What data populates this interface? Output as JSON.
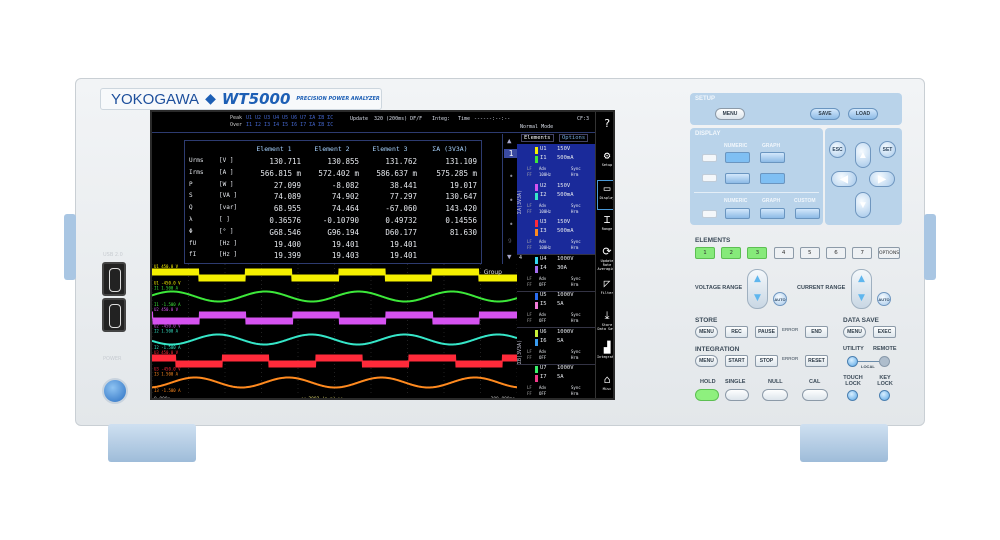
{
  "brand": {
    "maker": "YOKOGAWA",
    "model": "WT5000",
    "subtitle": "PRECISION POWER ANALYZER"
  },
  "front": {
    "usb_label": "USB 2.0",
    "power_label": "POWER"
  },
  "screen": {
    "header": {
      "peak_label": "Peak",
      "peak_channels": "U1 U2 U3 U4 U5 U6 U7 ΣA ΣB ΣC",
      "over_label": "Over",
      "over_channels": "I1 I2 I3 I4 I5 I6 I7 ΣA ΣB ΣC",
      "update_label": "Update",
      "update_value": "320 (200ms) DF/F",
      "integ_label": "Integ:",
      "time_label": "Time",
      "time_value": "------:--:--",
      "mode": "Normal Mode",
      "cf": "CF:3"
    },
    "table": {
      "columns": [
        "Element 1",
        "Element 2",
        "Element 3",
        "ΣA (3V3A)"
      ],
      "rows": [
        {
          "name": "Urms",
          "unit": "[V  ]",
          "values": [
            "130.711",
            "130.855",
            "131.762",
            "131.109"
          ]
        },
        {
          "name": "Irms",
          "unit": "[A  ]",
          "values": [
            "566.815 m",
            "572.402 m",
            "586.637 m",
            "575.285 m"
          ]
        },
        {
          "name": "P",
          "unit": "[W  ]",
          "values": [
            "27.099",
            "-8.082",
            "38.441",
            "19.017"
          ]
        },
        {
          "name": "S",
          "unit": "[VA ]",
          "values": [
            "74.089",
            "74.902",
            "77.297",
            "130.647"
          ]
        },
        {
          "name": "Q",
          "unit": "[var]",
          "values": [
            "68.955",
            "74.464",
            "-67.060",
            "143.420"
          ]
        },
        {
          "name": "λ",
          "unit": "[   ]",
          "values": [
            "0.36576",
            "-0.10790",
            "0.49732",
            "0.14556"
          ]
        },
        {
          "name": "Φ",
          "unit": "[°  ]",
          "values": [
            "G68.546",
            "G96.194",
            "D60.177",
            "81.630"
          ]
        },
        {
          "name": "fU",
          "unit": "[Hz ]",
          "values": [
            "19.400",
            "19.401",
            "19.401",
            ""
          ]
        },
        {
          "name": "fI",
          "unit": "[Hz ]",
          "values": [
            "19.399",
            "19.403",
            "19.401",
            ""
          ]
        }
      ]
    },
    "scroll": {
      "up": "▲",
      "page": "1",
      "last": "9",
      "down": "▼"
    },
    "element_tabs": [
      "Elements",
      "Options"
    ],
    "groups": [
      "ΣA(3V3A)",
      "4",
      "ΣB(3V3A)"
    ],
    "elements": [
      {
        "u": "U1",
        "ur": "150V",
        "i": "I1",
        "ir": "500mA",
        "lf": "Adv",
        "ff": "100Hz",
        "sync": "Sync",
        "hrm": "Hrm",
        "ucolor": "#f5f000",
        "icolor": "#3de83a",
        "selected": true
      },
      {
        "u": "U2",
        "ur": "150V",
        "i": "I2",
        "ir": "500mA",
        "lf": "Adv",
        "ff": "100Hz",
        "sync": "Sync",
        "hrm": "Hrm",
        "ucolor": "#d552f0",
        "icolor": "#36e6c8",
        "selected": true
      },
      {
        "u": "U3",
        "ur": "150V",
        "i": "I3",
        "ir": "500mA",
        "lf": "Adv",
        "ff": "100Hz",
        "sync": "Sync",
        "hrm": "Hrm",
        "ucolor": "#ff2a3a",
        "icolor": "#ff8a1f",
        "selected": true
      },
      {
        "u": "U4",
        "ur": "1000V",
        "i": "I4",
        "ir": "30A",
        "lf": "Adv",
        "ff": "OFF",
        "sync": "Sync",
        "hrm": "Hrm",
        "ucolor": "#35d8f0",
        "icolor": "#a46ef0",
        "selected": false
      },
      {
        "u": "U5",
        "ur": "1000V",
        "i": "I5",
        "ir": "5A",
        "lf": "Adv",
        "ff": "OFF",
        "sync": "Sync",
        "hrm": "Hrm",
        "ucolor": "#2a6cf0",
        "icolor": "#f07ad8",
        "selected": false
      },
      {
        "u": "U6",
        "ur": "1000V",
        "i": "I6",
        "ir": "5A",
        "lf": "Adv",
        "ff": "OFF",
        "sync": "Sync",
        "hrm": "Hrm",
        "ucolor": "#c8f03a",
        "icolor": "#3a9cf0",
        "selected": false
      },
      {
        "u": "U7",
        "ur": "1000V",
        "i": "I7",
        "ir": "5A",
        "lf": "Adv",
        "ff": "OFF",
        "sync": "Sync",
        "hrm": "Hrm",
        "ucolor": "#3af06a",
        "icolor": "#f03a8a",
        "selected": false
      }
    ],
    "side_menu": [
      {
        "icon": "help-icon",
        "glyph": "?",
        "label": ""
      },
      {
        "icon": "gear-icon",
        "glyph": "⚙",
        "label": "Setup"
      },
      {
        "icon": "display-icon",
        "glyph": "▭",
        "label": "Display"
      },
      {
        "icon": "range-icon",
        "glyph": "⌶",
        "label": "Range"
      },
      {
        "icon": "refresh-icon",
        "glyph": "⟳",
        "label": "Update Rate Averaging"
      },
      {
        "icon": "filter-icon",
        "glyph": "◸",
        "label": "Filter"
      },
      {
        "icon": "store-icon",
        "glyph": "⤓",
        "label": "Store Data Save"
      },
      {
        "icon": "integration-icon",
        "glyph": "▟",
        "label": "Integration"
      },
      {
        "icon": "toolbox-icon",
        "glyph": "⌂",
        "label": "Misc"
      }
    ],
    "waves": [
      {
        "kind": "square",
        "color": "#f5f000",
        "top": "U1    450.0 V",
        "bottom": "U1   -450.0 V"
      },
      {
        "kind": "sine",
        "color": "#3de83a",
        "top": "I1    1.500 A",
        "bottom": "I1   -1.500 A"
      },
      {
        "kind": "square",
        "color": "#d552f0",
        "top": "U2    450.0 V",
        "bottom": "U2   -450.0 V"
      },
      {
        "kind": "sine",
        "color": "#36e6c8",
        "top": "I2    1.500 A",
        "bottom": "I2   -1.500 A"
      },
      {
        "kind": "square",
        "color": "#ff2a3a",
        "top": "U3    450.0 V",
        "bottom": "U3   -450.0 V"
      },
      {
        "kind": "sine",
        "color": "#ff8a1f",
        "top": "I3    1.500 A",
        "bottom": "I3   -1.500 A"
      }
    ],
    "wave_footer": {
      "start": "0.000s",
      "center": "<< 2002 (p-p) >>",
      "end": "200.000ms",
      "group": "Group"
    }
  },
  "panel": {
    "setup": {
      "title": "SETUP",
      "menu": "MENU",
      "save": "SAVE",
      "load": "LOAD"
    },
    "display": {
      "title": "DISPLAY",
      "numeric": "NUMERIC",
      "graph": "GRAPH",
      "custom": "CUSTOM"
    },
    "nav": {
      "esc": "ESC",
      "set": "SET",
      "up": "▲",
      "down": "▼",
      "left": "◀",
      "right": "▶"
    },
    "elements": {
      "title": "ELEMENTS",
      "keys": [
        "1",
        "2",
        "3",
        "4",
        "5",
        "6",
        "7"
      ],
      "options": "OPTIONS",
      "active": [
        true,
        true,
        true,
        false,
        false,
        false,
        false
      ]
    },
    "ranges": {
      "voltage": "VOLTAGE RANGE",
      "current": "CURRENT RANGE",
      "auto": "AUTO",
      "up": "▲",
      "down": "▼"
    },
    "store": {
      "title": "STORE",
      "menu": "MENU",
      "rec": "REC",
      "pause": "PAUSE",
      "error": "ERROR",
      "end": "END"
    },
    "data_save": {
      "title": "DATA SAVE",
      "menu": "MENU",
      "exec": "EXEC"
    },
    "integration": {
      "title": "INTEGRATION",
      "menu": "MENU",
      "start": "START",
      "stop": "STOP",
      "error": "ERROR",
      "reset": "RESET"
    },
    "utility": {
      "utility": "UTILITY",
      "remote": "REMOTE",
      "local": "LOCAL"
    },
    "bottom": {
      "hold": "HOLD",
      "single": "SINGLE",
      "null": "NULL",
      "cal": "CAL",
      "touch_lock": "TOUCH LOCK",
      "key_lock": "KEY LOCK"
    },
    "colors": {
      "panel": "#b9d3ea",
      "active_green": "#86ea7a",
      "accent_blue": "#5aa7e6"
    }
  }
}
